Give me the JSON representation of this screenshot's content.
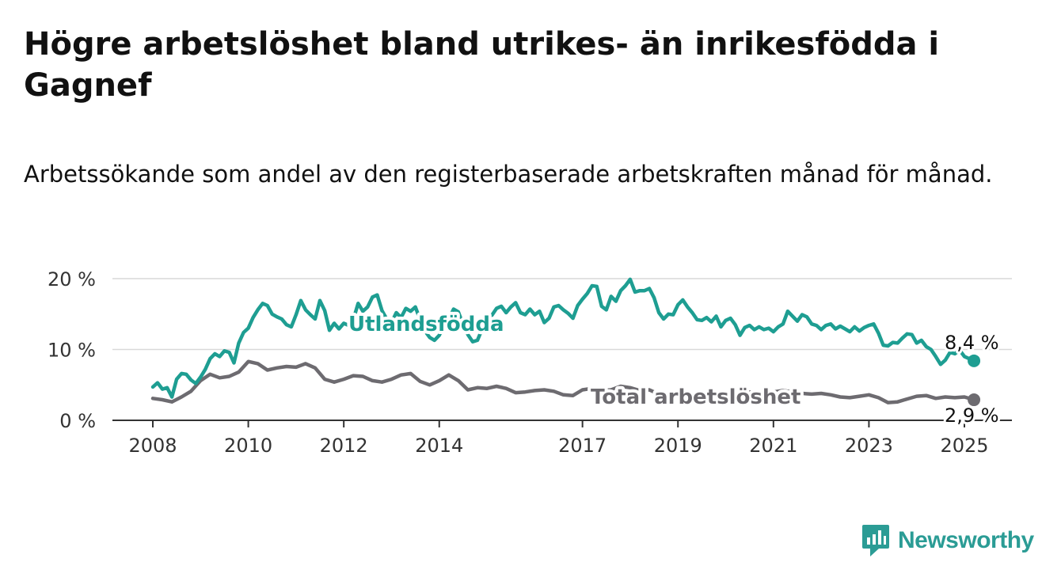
{
  "chart_data": {
    "type": "line",
    "title": "Högre arbetslöshet bland utrikes- än inrikesfödda i Gagnef",
    "subtitle": "Arbetssökande som andel av den registerbaserade arbetskraften månad för månad.",
    "ylim": [
      0,
      20
    ],
    "y_ticks": [
      {
        "value": 0,
        "label": "0 %"
      },
      {
        "value": 10,
        "label": "10 %"
      },
      {
        "value": 20,
        "label": "20 %"
      }
    ],
    "x_ticks": [
      {
        "value": 2008,
        "label": "2008"
      },
      {
        "value": 2010,
        "label": "2010"
      },
      {
        "value": 2012,
        "label": "2012"
      },
      {
        "value": 2014,
        "label": "2014"
      },
      {
        "value": 2017,
        "label": "2017"
      },
      {
        "value": 2019,
        "label": "2019"
      },
      {
        "value": 2021,
        "label": "2021"
      },
      {
        "value": 2023,
        "label": "2023"
      },
      {
        "value": 2025,
        "label": "2025"
      }
    ],
    "grid": true,
    "series": [
      {
        "name": "Utlandsfödda",
        "color": "#1e9e92",
        "end_label": "8,4 %",
        "points": [
          [
            2008.0,
            4.7
          ],
          [
            2008.1,
            5.3
          ],
          [
            2008.2,
            4.4
          ],
          [
            2008.3,
            4.6
          ],
          [
            2008.4,
            3.3
          ],
          [
            2008.5,
            5.8
          ],
          [
            2008.6,
            6.6
          ],
          [
            2008.7,
            6.5
          ],
          [
            2008.8,
            5.7
          ],
          [
            2008.9,
            5.2
          ],
          [
            2009.0,
            6.1
          ],
          [
            2009.1,
            7.2
          ],
          [
            2009.2,
            8.7
          ],
          [
            2009.3,
            9.4
          ],
          [
            2009.4,
            9.0
          ],
          [
            2009.5,
            9.8
          ],
          [
            2009.6,
            9.6
          ],
          [
            2009.7,
            8.1
          ],
          [
            2009.8,
            10.9
          ],
          [
            2009.9,
            12.4
          ],
          [
            2010.0,
            13.0
          ],
          [
            2010.1,
            14.5
          ],
          [
            2010.2,
            15.6
          ],
          [
            2010.3,
            16.5
          ],
          [
            2010.4,
            16.2
          ],
          [
            2010.5,
            15.0
          ],
          [
            2010.6,
            14.6
          ],
          [
            2010.7,
            14.3
          ],
          [
            2010.8,
            13.5
          ],
          [
            2010.9,
            13.2
          ],
          [
            2011.0,
            14.9
          ],
          [
            2011.1,
            16.9
          ],
          [
            2011.2,
            15.6
          ],
          [
            2011.3,
            14.9
          ],
          [
            2011.4,
            14.3
          ],
          [
            2011.5,
            16.9
          ],
          [
            2011.6,
            15.5
          ],
          [
            2011.7,
            12.7
          ],
          [
            2011.8,
            13.7
          ],
          [
            2011.9,
            12.9
          ],
          [
            2012.0,
            13.7
          ],
          [
            2012.1,
            13.4
          ],
          [
            2012.2,
            14.2
          ],
          [
            2012.3,
            16.5
          ],
          [
            2012.4,
            15.4
          ],
          [
            2012.5,
            16.0
          ],
          [
            2012.6,
            17.4
          ],
          [
            2012.7,
            17.7
          ],
          [
            2012.8,
            15.5
          ],
          [
            2012.9,
            14.3
          ],
          [
            2013.0,
            13.8
          ],
          [
            2013.1,
            15.2
          ],
          [
            2013.2,
            14.5
          ],
          [
            2013.3,
            15.8
          ],
          [
            2013.4,
            15.4
          ],
          [
            2013.5,
            16.0
          ],
          [
            2013.6,
            14.2
          ],
          [
            2013.7,
            12.6
          ],
          [
            2013.8,
            11.7
          ],
          [
            2013.9,
            11.3
          ],
          [
            2014.0,
            12.0
          ],
          [
            2014.1,
            13.5
          ],
          [
            2014.2,
            14.3
          ],
          [
            2014.3,
            15.7
          ],
          [
            2014.4,
            15.3
          ],
          [
            2014.5,
            13.5
          ],
          [
            2014.6,
            12.1
          ],
          [
            2014.7,
            11.1
          ],
          [
            2014.8,
            11.3
          ],
          [
            2014.9,
            12.9
          ],
          [
            2015.0,
            14.1
          ],
          [
            2015.1,
            14.8
          ],
          [
            2015.2,
            15.8
          ],
          [
            2015.3,
            16.1
          ],
          [
            2015.4,
            15.2
          ],
          [
            2015.5,
            16.0
          ],
          [
            2015.6,
            16.6
          ],
          [
            2015.7,
            15.2
          ],
          [
            2015.8,
            14.9
          ],
          [
            2015.9,
            15.7
          ],
          [
            2016.0,
            14.9
          ],
          [
            2016.1,
            15.4
          ],
          [
            2016.2,
            13.8
          ],
          [
            2016.3,
            14.4
          ],
          [
            2016.4,
            16.0
          ],
          [
            2016.5,
            16.2
          ],
          [
            2016.6,
            15.6
          ],
          [
            2016.7,
            15.1
          ],
          [
            2016.8,
            14.4
          ],
          [
            2016.9,
            16.2
          ],
          [
            2017.0,
            17.1
          ],
          [
            2017.1,
            17.9
          ],
          [
            2017.2,
            19.0
          ],
          [
            2017.3,
            18.9
          ],
          [
            2017.4,
            16.1
          ],
          [
            2017.5,
            15.6
          ],
          [
            2017.6,
            17.5
          ],
          [
            2017.7,
            16.8
          ],
          [
            2017.8,
            18.3
          ],
          [
            2017.9,
            19.0
          ],
          [
            2018.0,
            19.9
          ],
          [
            2018.1,
            18.1
          ],
          [
            2018.2,
            18.3
          ],
          [
            2018.3,
            18.3
          ],
          [
            2018.4,
            18.6
          ],
          [
            2018.5,
            17.3
          ],
          [
            2018.6,
            15.2
          ],
          [
            2018.7,
            14.3
          ],
          [
            2018.8,
            15.0
          ],
          [
            2018.9,
            14.9
          ],
          [
            2019.0,
            16.3
          ],
          [
            2019.1,
            17.0
          ],
          [
            2019.2,
            16.0
          ],
          [
            2019.3,
            15.2
          ],
          [
            2019.4,
            14.2
          ],
          [
            2019.5,
            14.1
          ],
          [
            2019.6,
            14.5
          ],
          [
            2019.7,
            13.9
          ],
          [
            2019.8,
            14.7
          ],
          [
            2019.9,
            13.2
          ],
          [
            2020.0,
            14.1
          ],
          [
            2020.1,
            14.4
          ],
          [
            2020.2,
            13.5
          ],
          [
            2020.3,
            12.0
          ],
          [
            2020.4,
            13.1
          ],
          [
            2020.5,
            13.4
          ],
          [
            2020.6,
            12.8
          ],
          [
            2020.7,
            13.2
          ],
          [
            2020.8,
            12.8
          ],
          [
            2020.9,
            13.0
          ],
          [
            2021.0,
            12.5
          ],
          [
            2021.1,
            13.2
          ],
          [
            2021.2,
            13.6
          ],
          [
            2021.3,
            15.4
          ],
          [
            2021.4,
            14.7
          ],
          [
            2021.5,
            14.0
          ],
          [
            2021.6,
            14.9
          ],
          [
            2021.7,
            14.6
          ],
          [
            2021.8,
            13.6
          ],
          [
            2021.9,
            13.4
          ],
          [
            2022.0,
            12.8
          ],
          [
            2022.1,
            13.4
          ],
          [
            2022.2,
            13.6
          ],
          [
            2022.3,
            12.9
          ],
          [
            2022.4,
            13.3
          ],
          [
            2022.5,
            12.9
          ],
          [
            2022.6,
            12.5
          ],
          [
            2022.7,
            13.2
          ],
          [
            2022.8,
            12.6
          ],
          [
            2022.9,
            13.1
          ],
          [
            2023.0,
            13.4
          ],
          [
            2023.1,
            13.6
          ],
          [
            2023.2,
            12.3
          ],
          [
            2023.3,
            10.6
          ],
          [
            2023.4,
            10.5
          ],
          [
            2023.5,
            11.0
          ],
          [
            2023.6,
            10.9
          ],
          [
            2023.7,
            11.6
          ],
          [
            2023.8,
            12.2
          ],
          [
            2023.9,
            12.1
          ],
          [
            2024.0,
            10.9
          ],
          [
            2024.1,
            11.3
          ],
          [
            2024.2,
            10.4
          ],
          [
            2024.3,
            10.0
          ],
          [
            2024.4,
            9.0
          ],
          [
            2024.5,
            7.9
          ],
          [
            2024.6,
            8.5
          ],
          [
            2024.7,
            9.6
          ],
          [
            2024.8,
            9.4
          ],
          [
            2024.9,
            9.9
          ],
          [
            2025.0,
            9.0
          ],
          [
            2025.2,
            8.4
          ]
        ]
      },
      {
        "name": "Total arbetslöshet",
        "color": "#6d6b70",
        "end_label": "2,9 %",
        "points": [
          [
            2008.0,
            3.1
          ],
          [
            2008.2,
            2.9
          ],
          [
            2008.4,
            2.6
          ],
          [
            2008.6,
            3.3
          ],
          [
            2008.8,
            4.1
          ],
          [
            2009.0,
            5.6
          ],
          [
            2009.2,
            6.5
          ],
          [
            2009.4,
            6.0
          ],
          [
            2009.6,
            6.2
          ],
          [
            2009.8,
            6.8
          ],
          [
            2010.0,
            8.3
          ],
          [
            2010.2,
            8.0
          ],
          [
            2010.4,
            7.1
          ],
          [
            2010.6,
            7.4
          ],
          [
            2010.8,
            7.6
          ],
          [
            2011.0,
            7.5
          ],
          [
            2011.2,
            8.0
          ],
          [
            2011.4,
            7.4
          ],
          [
            2011.6,
            5.8
          ],
          [
            2011.8,
            5.4
          ],
          [
            2012.0,
            5.8
          ],
          [
            2012.2,
            6.3
          ],
          [
            2012.4,
            6.2
          ],
          [
            2012.6,
            5.6
          ],
          [
            2012.8,
            5.4
          ],
          [
            2013.0,
            5.8
          ],
          [
            2013.2,
            6.4
          ],
          [
            2013.4,
            6.6
          ],
          [
            2013.6,
            5.5
          ],
          [
            2013.8,
            5.0
          ],
          [
            2014.0,
            5.6
          ],
          [
            2014.2,
            6.4
          ],
          [
            2014.4,
            5.6
          ],
          [
            2014.6,
            4.3
          ],
          [
            2014.8,
            4.6
          ],
          [
            2015.0,
            4.5
          ],
          [
            2015.2,
            4.8
          ],
          [
            2015.4,
            4.5
          ],
          [
            2015.6,
            3.9
          ],
          [
            2015.8,
            4.0
          ],
          [
            2016.0,
            4.2
          ],
          [
            2016.2,
            4.3
          ],
          [
            2016.4,
            4.1
          ],
          [
            2016.6,
            3.6
          ],
          [
            2016.8,
            3.5
          ],
          [
            2017.0,
            4.3
          ],
          [
            2017.2,
            4.5
          ],
          [
            2017.4,
            4.2
          ],
          [
            2017.6,
            4.3
          ],
          [
            2017.8,
            4.8
          ],
          [
            2018.0,
            4.6
          ],
          [
            2018.2,
            4.2
          ],
          [
            2018.4,
            4.3
          ],
          [
            2018.6,
            3.7
          ],
          [
            2018.8,
            3.5
          ],
          [
            2019.0,
            3.7
          ],
          [
            2019.2,
            3.8
          ],
          [
            2019.4,
            3.6
          ],
          [
            2019.6,
            3.7
          ],
          [
            2019.8,
            3.6
          ],
          [
            2020.0,
            3.7
          ],
          [
            2020.2,
            3.9
          ],
          [
            2020.4,
            4.1
          ],
          [
            2020.6,
            3.9
          ],
          [
            2020.8,
            3.8
          ],
          [
            2021.0,
            4.0
          ],
          [
            2021.2,
            4.2
          ],
          [
            2021.4,
            4.0
          ],
          [
            2021.6,
            3.8
          ],
          [
            2021.8,
            3.7
          ],
          [
            2022.0,
            3.8
          ],
          [
            2022.2,
            3.6
          ],
          [
            2022.4,
            3.3
          ],
          [
            2022.6,
            3.2
          ],
          [
            2022.8,
            3.4
          ],
          [
            2023.0,
            3.6
          ],
          [
            2023.2,
            3.2
          ],
          [
            2023.4,
            2.5
          ],
          [
            2023.6,
            2.6
          ],
          [
            2023.8,
            3.0
          ],
          [
            2024.0,
            3.4
          ],
          [
            2024.2,
            3.5
          ],
          [
            2024.4,
            3.1
          ],
          [
            2024.6,
            3.3
          ],
          [
            2024.8,
            3.2
          ],
          [
            2025.0,
            3.3
          ],
          [
            2025.2,
            2.9
          ]
        ]
      }
    ]
  },
  "brand": {
    "name": "Newsworthy",
    "color": "#2b9c95"
  }
}
